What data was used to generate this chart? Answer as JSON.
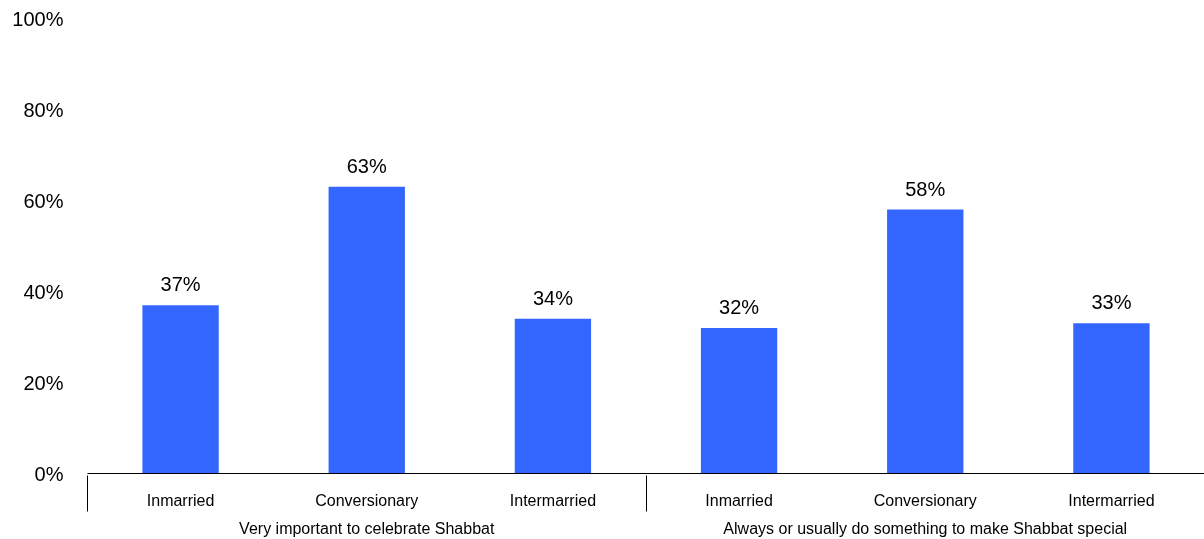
{
  "chart_data": {
    "type": "bar",
    "categories": [
      "Inmarried",
      "Conversionary",
      "Intermarried",
      "Inmarried",
      "Conversionary",
      "Intermarried"
    ],
    "values": [
      37,
      63,
      34,
      32,
      58,
      33
    ],
    "color": "#3366ff",
    "ylim": [
      0,
      100
    ],
    "yticks": [
      {
        "value": 0,
        "label": "0%"
      },
      {
        "value": 20,
        "label": "20%"
      },
      {
        "value": 40,
        "label": "40%"
      },
      {
        "value": 60,
        "label": "60%"
      },
      {
        "value": 80,
        "label": "80%"
      },
      {
        "value": 100,
        "label": "100%"
      }
    ],
    "value_labels": [
      "37%",
      "63%",
      "34%",
      "32%",
      "58%",
      "33%"
    ],
    "annotations": [
      "Very important to celebrate Shabbat",
      "Always or usually do something to make Shabbat special"
    ],
    "grid": false
  }
}
